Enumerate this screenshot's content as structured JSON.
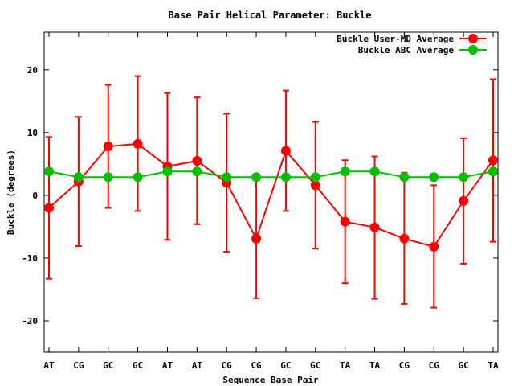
{
  "chart_data": {
    "type": "line",
    "title": "Base Pair Helical Parameter: Buckle",
    "xlabel": "Sequence Base Pair",
    "ylabel": "Buckle (degrees)",
    "categories": [
      "AT",
      "CG",
      "GC",
      "GC",
      "AT",
      "AT",
      "CG",
      "CG",
      "GC",
      "GC",
      "TA",
      "TA",
      "CG",
      "CG",
      "GC",
      "TA"
    ],
    "ylim": [
      -25,
      26
    ],
    "yticks": [
      -20,
      -10,
      0,
      10,
      20
    ],
    "grid": false,
    "legend_position": "top-right",
    "series": [
      {
        "name": "Buckle User-MD Average",
        "color": "#ff0000",
        "values": [
          -2.0,
          2.2,
          7.8,
          8.2,
          4.6,
          5.5,
          2.0,
          -6.9,
          7.1,
          1.6,
          -4.2,
          -5.1,
          -6.9,
          -8.2,
          -0.9,
          5.6
        ],
        "err_low": [
          -13.3,
          -8.1,
          -2.0,
          -2.5,
          -7.1,
          -4.6,
          -9.0,
          -16.4,
          -2.5,
          -8.5,
          -14.0,
          -16.5,
          -17.3,
          -17.9,
          -10.9,
          -7.4
        ],
        "err_high": [
          9.3,
          12.5,
          17.6,
          19.0,
          16.3,
          15.6,
          13.0,
          2.8,
          16.7,
          11.7,
          5.6,
          6.2,
          3.6,
          1.6,
          9.1,
          18.5
        ]
      },
      {
        "name": "Buckle ABC Average",
        "color": "#00c000",
        "values": [
          3.8,
          2.9,
          2.9,
          2.9,
          3.8,
          3.8,
          2.9,
          2.9,
          2.9,
          2.9,
          3.8,
          3.8,
          2.9,
          2.9,
          2.9,
          3.8
        ]
      }
    ]
  }
}
